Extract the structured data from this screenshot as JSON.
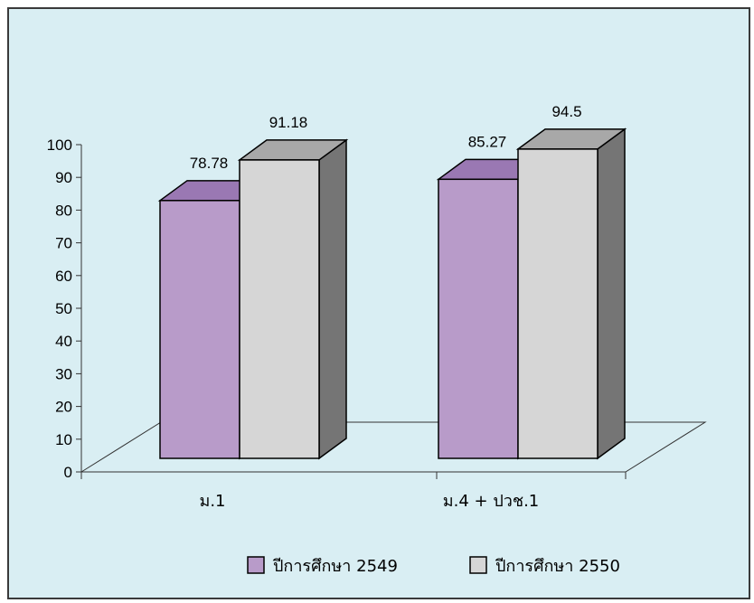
{
  "chart_data": {
    "type": "bar",
    "categories": [
      "ม.1",
      "ม.4 + ปวช.1"
    ],
    "series": [
      {
        "name": "ปีการศึกษา 2549",
        "values": [
          78.78,
          85.27
        ],
        "color": "#b89bc9",
        "top_color": "#9a78b3",
        "side_color": "#6e5a80"
      },
      {
        "name": "ปีการศึกษา 2550",
        "values": [
          91.18,
          94.5
        ],
        "color": "#d6d6d6",
        "top_color": "#a8a8a8",
        "side_color": "#757575"
      }
    ],
    "data_labels": [
      [
        "78.78",
        "85.27"
      ],
      [
        "91.18",
        "94.5"
      ]
    ],
    "yticks": [
      "0",
      "10",
      "20",
      "30",
      "40",
      "50",
      "60",
      "70",
      "80",
      "90",
      "100"
    ],
    "ylim": [
      0,
      100
    ],
    "grid": false,
    "legend_position": "bottom",
    "background": "#d9eef3",
    "border_color": "#3a3a3a"
  }
}
